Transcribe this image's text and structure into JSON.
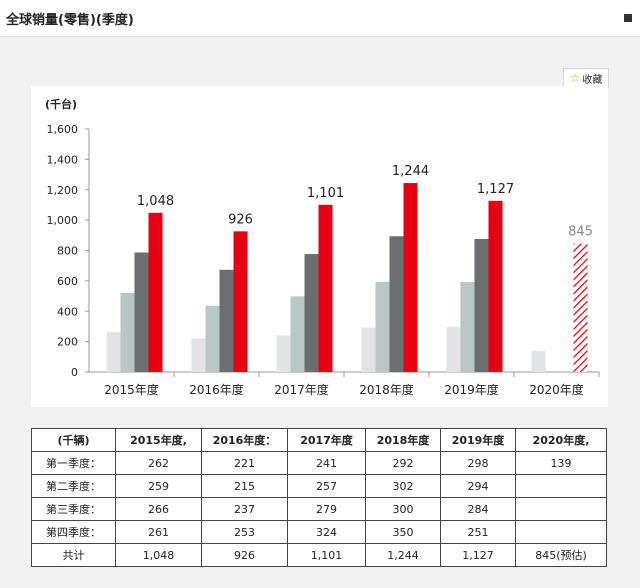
{
  "header": {
    "title": "全球销量(零售)(季度)"
  },
  "favorite": {
    "label": "收藏"
  },
  "chart_data": {
    "type": "bar",
    "ylabel": "(千台)",
    "ylim": [
      0,
      1600
    ],
    "yticks": [
      0,
      200,
      400,
      600,
      800,
      1000,
      1200,
      1400,
      1600
    ],
    "ytick_labels": [
      "0",
      "200",
      "400",
      "600",
      "800",
      "1,000",
      "1,200",
      "1,400",
      "1,600"
    ],
    "categories": [
      "2015年度",
      "2016年度",
      "2017年度",
      "2018年度",
      "2019年度",
      "2020年度"
    ],
    "series": [
      {
        "values": [
          262,
          221,
          241,
          292,
          298,
          139
        ],
        "color": "#e1e3e4"
      },
      {
        "values": [
          521,
          436,
          498,
          594,
          592,
          null
        ],
        "color": "#b9c6c6"
      },
      {
        "values": [
          787,
          673,
          777,
          894,
          876,
          null
        ],
        "color": "#6d6e71"
      },
      {
        "values": [
          1048,
          926,
          1101,
          1244,
          1127,
          845
        ],
        "color": "#e60012"
      }
    ],
    "total_labels": [
      "1,048",
      "926",
      "1,101",
      "1,244",
      "1,127",
      "845"
    ],
    "forecast_category": "2020年度",
    "grid": false,
    "legend": "none"
  },
  "table": {
    "headers": [
      "(千辆)",
      "2015年度,",
      "2016年度：",
      "2017年度",
      "2018年度",
      "2019年度",
      "2020年度,"
    ],
    "rows": [
      {
        "label": "第一季度：",
        "values": [
          "262",
          "221",
          "241",
          "292",
          "298",
          "139"
        ]
      },
      {
        "label": "第二季度：",
        "values": [
          "259",
          "215",
          "257",
          "302",
          "294",
          ""
        ]
      },
      {
        "label": "第三季度：",
        "values": [
          "266",
          "237",
          "279",
          "300",
          "284",
          ""
        ]
      },
      {
        "label": "第四季度：",
        "values": [
          "261",
          "253",
          "324",
          "350",
          "251",
          ""
        ]
      },
      {
        "label": "共计",
        "values": [
          "1,048",
          "926",
          "1,101",
          "1,244",
          "1,127",
          "845(预估)"
        ]
      }
    ]
  }
}
